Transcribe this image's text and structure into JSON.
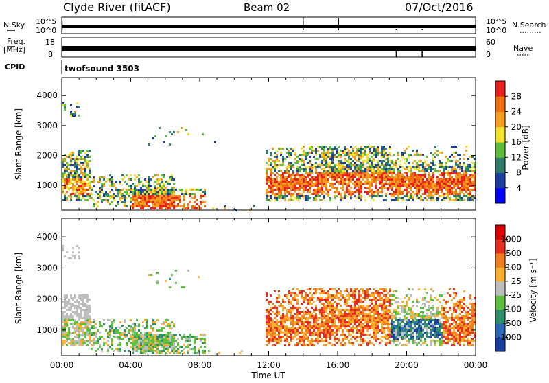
{
  "header": {
    "station": "Clyde River (fitACF)",
    "beam": "Beam 02",
    "date": "07/Oct/2016"
  },
  "top_panels": {
    "nsky_label": "N.Sky",
    "nsearch_label": "N.Search",
    "nsky_ticks": [
      "10^5",
      "10^0"
    ],
    "nsearch_ticks": [
      "10^5",
      "10^0"
    ],
    "freq_label_1": "Freq.",
    "freq_label_2": "[MHz]",
    "freq_ticks": [
      "18",
      "8"
    ],
    "nave_label": "Nave",
    "nave_ticks": [
      "60",
      "0"
    ],
    "cpid_label": "CPID",
    "cpid_value": "twofsound 3503"
  },
  "chart_data": [
    {
      "type": "heatmap",
      "name": "power",
      "ylabel": "Slant Range [km]",
      "ylim": [
        180,
        4600
      ],
      "yticks": [
        1000,
        2000,
        3000,
        4000
      ],
      "xlim": [
        0,
        24
      ],
      "colorbar_label": "Power [dB]",
      "colorbar_ticks": [
        "28",
        "24",
        "20",
        "16",
        "12",
        "8",
        "4"
      ],
      "colors": [
        "#0000ff",
        "#1f3f9f",
        "#2e7d6b",
        "#5fbf3a",
        "#f2e22a",
        "#f5a020",
        "#f07010",
        "#e82020"
      ]
    },
    {
      "type": "heatmap",
      "name": "velocity",
      "ylabel": "Slant Range [km]",
      "ylim": [
        180,
        4600
      ],
      "yticks": [
        1000,
        2000,
        3000,
        4000
      ],
      "xlim": [
        0,
        24
      ],
      "colorbar_label": "Velocity [m s⁻¹]",
      "colorbar_ticks": [
        "1000",
        "500",
        "100",
        "25",
        "-25",
        "-100",
        "-500",
        "-1000"
      ],
      "colors": [
        "#1a3fa0",
        "#2a6ab8",
        "#2e8f68",
        "#5cc040",
        "#bebebe",
        "#f7b030",
        "#f08020",
        "#e83020",
        "#e00000"
      ]
    }
  ],
  "x_axis": {
    "xlabel": "Time UT",
    "ticks": [
      "00:00",
      "04:00",
      "08:00",
      "12:00",
      "16:00",
      "20:00",
      "00:00"
    ]
  }
}
